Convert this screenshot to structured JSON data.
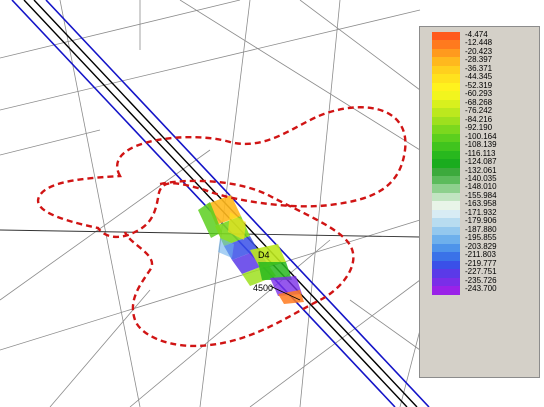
{
  "legend": {
    "labels": [
      "-4.474",
      "-12.448",
      "-20.423",
      "-28.397",
      "-36.371",
      "-44.345",
      "-52.319",
      "-60.293",
      "-68.268",
      "-76.242",
      "-84.216",
      "-92.190",
      "-100.164",
      "-108.139",
      "-116.113",
      "-124.087",
      "-132.061",
      "-140.035",
      "-148.010",
      "-155.984",
      "-163.958",
      "-171.932",
      "-179.906",
      "-187.880",
      "-195.855",
      "-203.829",
      "-211.803",
      "-219.777",
      "-227.751",
      "-235.726",
      "-243.700"
    ],
    "colors": [
      "#ff5a1e",
      "#ff7a1e",
      "#ff9a1e",
      "#ffb81e",
      "#ffd01e",
      "#ffe21e",
      "#fff21e",
      "#f2f51e",
      "#d8f01e",
      "#bce81e",
      "#9ee01e",
      "#7cd81e",
      "#5ccf1e",
      "#40c41e",
      "#28b81e",
      "#1aac1e",
      "#3caa3c",
      "#5cbb5c",
      "#8ed08e",
      "#c2e4c2",
      "#e8f4e8",
      "#d8ecf4",
      "#b8dcf0",
      "#94c8ee",
      "#6eb0ec",
      "#4e94ea",
      "#3a72e8",
      "#3a50e8",
      "#5a3ae8",
      "#7a2ee8",
      "#9a22e8"
    ]
  },
  "annotations": {
    "station_label": "4500",
    "marker_label": "D4"
  },
  "colors": {
    "road_blue": "#1414c8",
    "road_black": "#000000",
    "boundary_red": "#d01414",
    "grid_gray": "#8c8c8c"
  }
}
